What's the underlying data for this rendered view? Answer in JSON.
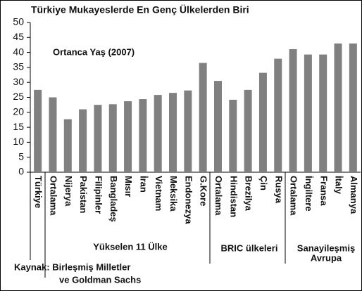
{
  "chart_data": {
    "type": "bar",
    "title": "Türkiye Mukayeslerde En Genç Ülkelerden Biri",
    "annotation": "Ortanca Yaş (2007)",
    "categories": [
      "Türkiye",
      "Ortalama",
      "Nijerya",
      "Pakistan",
      "Filipinler",
      "Bangladeş",
      "Mısır",
      "İran",
      "Vietnam",
      "Meksika",
      "Endonezya",
      "G.Kore",
      "Ortalama",
      "Hindistan",
      "Brezilya",
      "Çin",
      "Rusya",
      "Ortalama",
      "İngiltere",
      "Fransa",
      "İtaly",
      "Almanya"
    ],
    "values": [
      27.5,
      25,
      17.7,
      21,
      22.5,
      22.7,
      23.7,
      24.4,
      25.8,
      26.5,
      27.3,
      36.5,
      30.5,
      24.2,
      27.5,
      33.2,
      37.9,
      41.1,
      39.3,
      39.3,
      43,
      43
    ],
    "color": "#808080",
    "ylim": [
      0,
      50
    ],
    "yticks": [
      0,
      5,
      10,
      15,
      20,
      25,
      30,
      35,
      40,
      45,
      50
    ],
    "grid": false,
    "groups": [
      {
        "lines": [
          "Yükselen 11 Ülke"
        ]
      },
      {
        "lines": [
          "BRIC ülkeleri"
        ]
      },
      {
        "lines": [
          "Sanayileşmiş",
          "Avrupa"
        ]
      }
    ],
    "source": [
      "Kaynak: Birleşmiş Milletler",
      "ve Goldman Sachs"
    ]
  }
}
